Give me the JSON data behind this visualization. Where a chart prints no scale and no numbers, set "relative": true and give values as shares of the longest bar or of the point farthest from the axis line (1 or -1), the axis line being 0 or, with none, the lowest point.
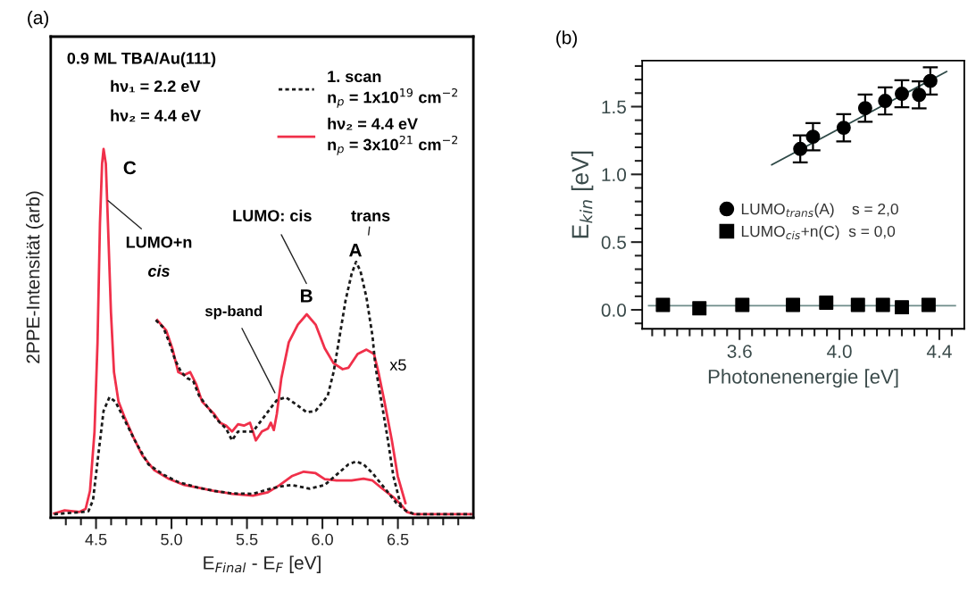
{
  "chart_data": [
    {
      "type": "line",
      "relative": true,
      "xlabel": "E$_{Final}$ - E$_{F}$ [eV]",
      "ylabel": "2PPE-Intensität (arb)",
      "xlim": [
        4.2,
        7.0
      ],
      "xticks": [
        {
          "value": 4.3,
          "label": null
        },
        {
          "value": 4.4,
          "label": null
        },
        4.5,
        {
          "value": 4.6,
          "label": null
        },
        {
          "value": 4.7,
          "label": null
        },
        {
          "value": 4.8,
          "label": null
        },
        {
          "value": 4.9,
          "label": null
        },
        {
          "value": 5,
          "label": "5.0"
        },
        {
          "value": 5.1,
          "label": null
        },
        {
          "value": 5.2,
          "label": null
        },
        {
          "value": 5.3,
          "label": null
        },
        {
          "value": 5.4,
          "label": null
        },
        5.5,
        {
          "value": 5.6,
          "label": null
        },
        {
          "value": 5.7,
          "label": null
        },
        {
          "value": 5.8,
          "label": null
        },
        {
          "value": 5.9,
          "label": null
        },
        {
          "value": 6,
          "label": "6.0"
        },
        {
          "value": 6.1,
          "label": null
        },
        {
          "value": 6.2,
          "label": null
        },
        {
          "value": 6.3,
          "label": null
        },
        {
          "value": 6.4,
          "label": null
        },
        6.5,
        {
          "value": 6.6,
          "label": null
        },
        {
          "value": 6.7,
          "label": null
        },
        {
          "value": 6.8,
          "label": null
        },
        {
          "value": 6.9,
          "label": null
        }
      ],
      "tick_labels": "x",
      "legend": "top right",
      "grid": false,
      "annotations": [
        "(a)",
        "0.9 ML TBA/Au(111)",
        "hν₁ = 2.2 eV",
        "hν₂ = 4.4 eV",
        {
          "text": "C",
          "x": 4.55,
          "y": 1.0
        },
        {
          "text": "LUMO+n",
          "x": 4.58,
          "y": 0.86
        },
        "cis",
        "LUMO: cis",
        "trans",
        {
          "text": "A",
          "x": 6.223,
          "y": 0.694
        },
        {
          "text": "B",
          "x": 5.896,
          "y": 0.552
        },
        {
          "text": "sp-band",
          "x": 5.685,
          "y": 0.339
        },
        "x5"
      ],
      "series": [
        {
          "name": "hν₂ = 4.4 eV\nn$_{p}$ = 3x10$^{21}$ cm$^{−2}$",
          "color": "#f0304a",
          "line_style": "solid",
          "x": [
            4.223,
            4.292,
            4.391,
            4.431,
            4.46,
            4.49,
            4.51,
            4.526,
            4.54,
            4.55,
            4.565,
            4.579,
            4.599,
            4.619,
            4.649,
            4.688,
            4.748,
            4.807,
            4.886,
            4.985,
            5.084,
            5.183,
            5.282,
            5.401,
            5.54,
            5.639,
            5.718,
            5.797,
            5.876,
            5.955,
            6.015,
            6.094,
            6.193,
            6.272,
            6.332,
            6.391,
            6.47,
            6.53,
            6.559,
            6.609,
            6.985
          ],
          "values": [
            0.012,
            0.02,
            0.016,
            0.024,
            0.073,
            0.234,
            0.476,
            0.798,
            0.96,
            1.0,
            0.96,
            0.798,
            0.556,
            0.395,
            0.315,
            0.274,
            0.218,
            0.169,
            0.129,
            0.105,
            0.089,
            0.081,
            0.073,
            0.065,
            0.06,
            0.069,
            0.089,
            0.113,
            0.125,
            0.121,
            0.105,
            0.101,
            0.101,
            0.106,
            0.101,
            0.081,
            0.056,
            0.032,
            0.016,
            0.01,
            0.01
          ]
        },
        {
          "name": "1. scan\nn$_{p}$ = 1x10$^{19}$ cm$^{−2}$",
          "color": "#1a1a1a",
          "line_style": "dotted",
          "x": [
            4.223,
            4.391,
            4.45,
            4.48,
            4.51,
            4.55,
            4.589,
            4.629,
            4.688,
            4.767,
            4.847,
            4.946,
            5.045,
            5.183,
            5.282,
            5.401,
            5.54,
            5.639,
            5.718,
            5.797,
            5.916,
            6.015,
            6.094,
            6.173,
            6.223,
            6.272,
            6.332,
            6.411,
            6.49,
            6.55,
            6.609,
            6.985
          ],
          "values": [
            0.01,
            0.015,
            0.018,
            0.048,
            0.153,
            0.29,
            0.327,
            0.315,
            0.266,
            0.202,
            0.145,
            0.117,
            0.097,
            0.081,
            0.073,
            0.066,
            0.065,
            0.077,
            0.085,
            0.089,
            0.079,
            0.089,
            0.117,
            0.145,
            0.153,
            0.145,
            0.121,
            0.081,
            0.04,
            0.02,
            0.01,
            0.01
          ]
        },
        {
          "color": "#f0304a",
          "line_style": "solid",
          "x": [
            4.906,
            4.965,
            5.005,
            5.045,
            5.084,
            5.124,
            5.163,
            5.203,
            5.243,
            5.282,
            5.322,
            5.362,
            5.401,
            5.441,
            5.48,
            5.52,
            5.559,
            5.599,
            5.639,
            5.658,
            5.678,
            5.698,
            5.728,
            5.777,
            5.837,
            5.896,
            5.955,
            6.015,
            6.074,
            6.134,
            6.173,
            6.233,
            6.292,
            6.342,
            6.371,
            6.411,
            6.46,
            6.499,
            6.55
          ],
          "values": [
            0.536,
            0.508,
            0.46,
            0.395,
            0.387,
            0.395,
            0.363,
            0.315,
            0.298,
            0.282,
            0.258,
            0.25,
            0.234,
            0.254,
            0.25,
            0.258,
            0.21,
            0.234,
            0.242,
            0.258,
            0.238,
            0.282,
            0.379,
            0.476,
            0.524,
            0.552,
            0.524,
            0.46,
            0.419,
            0.403,
            0.407,
            0.444,
            0.456,
            0.444,
            0.395,
            0.315,
            0.21,
            0.113,
            0.04
          ]
        },
        {
          "color": "#1a1a1a",
          "line_style": "dotted",
          "x": [
            4.896,
            4.946,
            4.985,
            5.025,
            5.064,
            5.104,
            5.144,
            5.183,
            5.243,
            5.302,
            5.362,
            5.401,
            5.441,
            5.48,
            5.54,
            5.599,
            5.658,
            5.698,
            5.757,
            5.817,
            5.896,
            5.955,
            5.995,
            6.035,
            6.074,
            6.114,
            6.153,
            6.193,
            6.223,
            6.252,
            6.292,
            6.332,
            6.351,
            6.391,
            6.431,
            6.47,
            6.52
          ],
          "values": [
            0.536,
            0.516,
            0.476,
            0.427,
            0.395,
            0.379,
            0.371,
            0.331,
            0.298,
            0.266,
            0.242,
            0.21,
            0.234,
            0.234,
            0.234,
            0.266,
            0.298,
            0.319,
            0.327,
            0.31,
            0.286,
            0.29,
            0.31,
            0.331,
            0.395,
            0.492,
            0.589,
            0.661,
            0.694,
            0.669,
            0.597,
            0.492,
            0.411,
            0.315,
            0.218,
            0.113,
            0.032
          ]
        }
      ]
    },
    {
      "type": "scatter",
      "xlabel": "Photonenenergie [eV]",
      "ylabel": "E$_{kin}$ [eV]",
      "xlim": [
        3.21,
        4.5
      ],
      "ylim": [
        -0.14,
        1.84
      ],
      "xticks": [
        {
          "value": 3.25,
          "label": null
        },
        {
          "value": 3.3,
          "label": null
        },
        {
          "value": 3.35,
          "label": null
        },
        {
          "value": 3.4,
          "label": null
        },
        {
          "value": 3.45,
          "label": null
        },
        {
          "value": 3.5,
          "label": null
        },
        {
          "value": 3.55,
          "label": null
        },
        3.6,
        {
          "value": 3.65,
          "label": null
        },
        {
          "value": 3.7,
          "label": null
        },
        {
          "value": 3.75,
          "label": null
        },
        {
          "value": 3.8,
          "label": null
        },
        {
          "value": 3.85,
          "label": null
        },
        {
          "value": 3.9,
          "label": null
        },
        {
          "value": 3.95,
          "label": null
        },
        {
          "value": 4,
          "label": "4.0"
        },
        {
          "value": 4.05,
          "label": null
        },
        {
          "value": 4.1,
          "label": null
        },
        {
          "value": 4.15,
          "label": null
        },
        {
          "value": 4.2,
          "label": null
        },
        {
          "value": 4.25,
          "label": null
        },
        {
          "value": 4.3,
          "label": null
        },
        {
          "value": 4.35,
          "label": null
        },
        4.4,
        {
          "value": 4.45,
          "label": null
        }
      ],
      "yticks": [
        {
          "value": -0.1,
          "label": null
        },
        {
          "value": 0,
          "label": "0.0"
        },
        {
          "value": 0.1,
          "label": null
        },
        {
          "value": 0.2,
          "label": null
        },
        {
          "value": 0.3,
          "label": null
        },
        {
          "value": 0.4,
          "label": null
        },
        0.5,
        {
          "value": 0.6,
          "label": null
        },
        {
          "value": 0.7,
          "label": null
        },
        {
          "value": 0.8,
          "label": null
        },
        {
          "value": 0.9,
          "label": null
        },
        {
          "value": 1,
          "label": "1.0"
        },
        {
          "value": 1.1,
          "label": null
        },
        {
          "value": 1.2,
          "label": null
        },
        {
          "value": 1.3,
          "label": null
        },
        {
          "value": 1.4,
          "label": null
        },
        1.5,
        {
          "value": 1.6,
          "label": null
        },
        {
          "value": 1.7,
          "label": null
        },
        {
          "value": 1.8,
          "label": null
        }
      ],
      "legend": "center",
      "grid": false,
      "annotations": [
        "(b)"
      ],
      "series": [
        {
          "type": "line",
          "color": "#2f4a48",
          "line_style": "solid",
          "marker": "none",
          "x": [
            3.729,
            4.429
          ],
          "values": [
            1.071,
            1.759
          ]
        },
        {
          "type": "line",
          "color": "#6f8c8a",
          "line_style": "solid",
          "marker": "none",
          "x": [
            3.236,
            4.464
          ],
          "values": [
            0.03,
            0.03
          ]
        },
        {
          "name": "LUMO$_{trans}$(A)    s = 2,0",
          "color": "#000000",
          "marker": "circle",
          "x": [
            3.843,
            3.894,
            4.017,
            4.103,
            4.183,
            4.25,
            4.319,
            4.364
          ],
          "values": [
            1.188,
            1.278,
            1.344,
            1.489,
            1.542,
            1.595,
            1.587,
            1.69
          ],
          "errors": [
            0.1,
            0.1,
            0.1,
            0.1,
            0.1,
            0.1,
            0.1,
            0.1
          ]
        },
        {
          "name": "LUMO$_{cis}$+n(C)  s = 0,0",
          "color": "#000000",
          "marker": "square",
          "x": [
            3.293,
            3.439,
            3.611,
            3.814,
            3.947,
            4.074,
            4.174,
            4.25,
            4.357
          ],
          "values": [
            0.037,
            0.011,
            0.037,
            0.037,
            0.053,
            0.037,
            0.037,
            0.019,
            0.037
          ]
        }
      ]
    }
  ]
}
